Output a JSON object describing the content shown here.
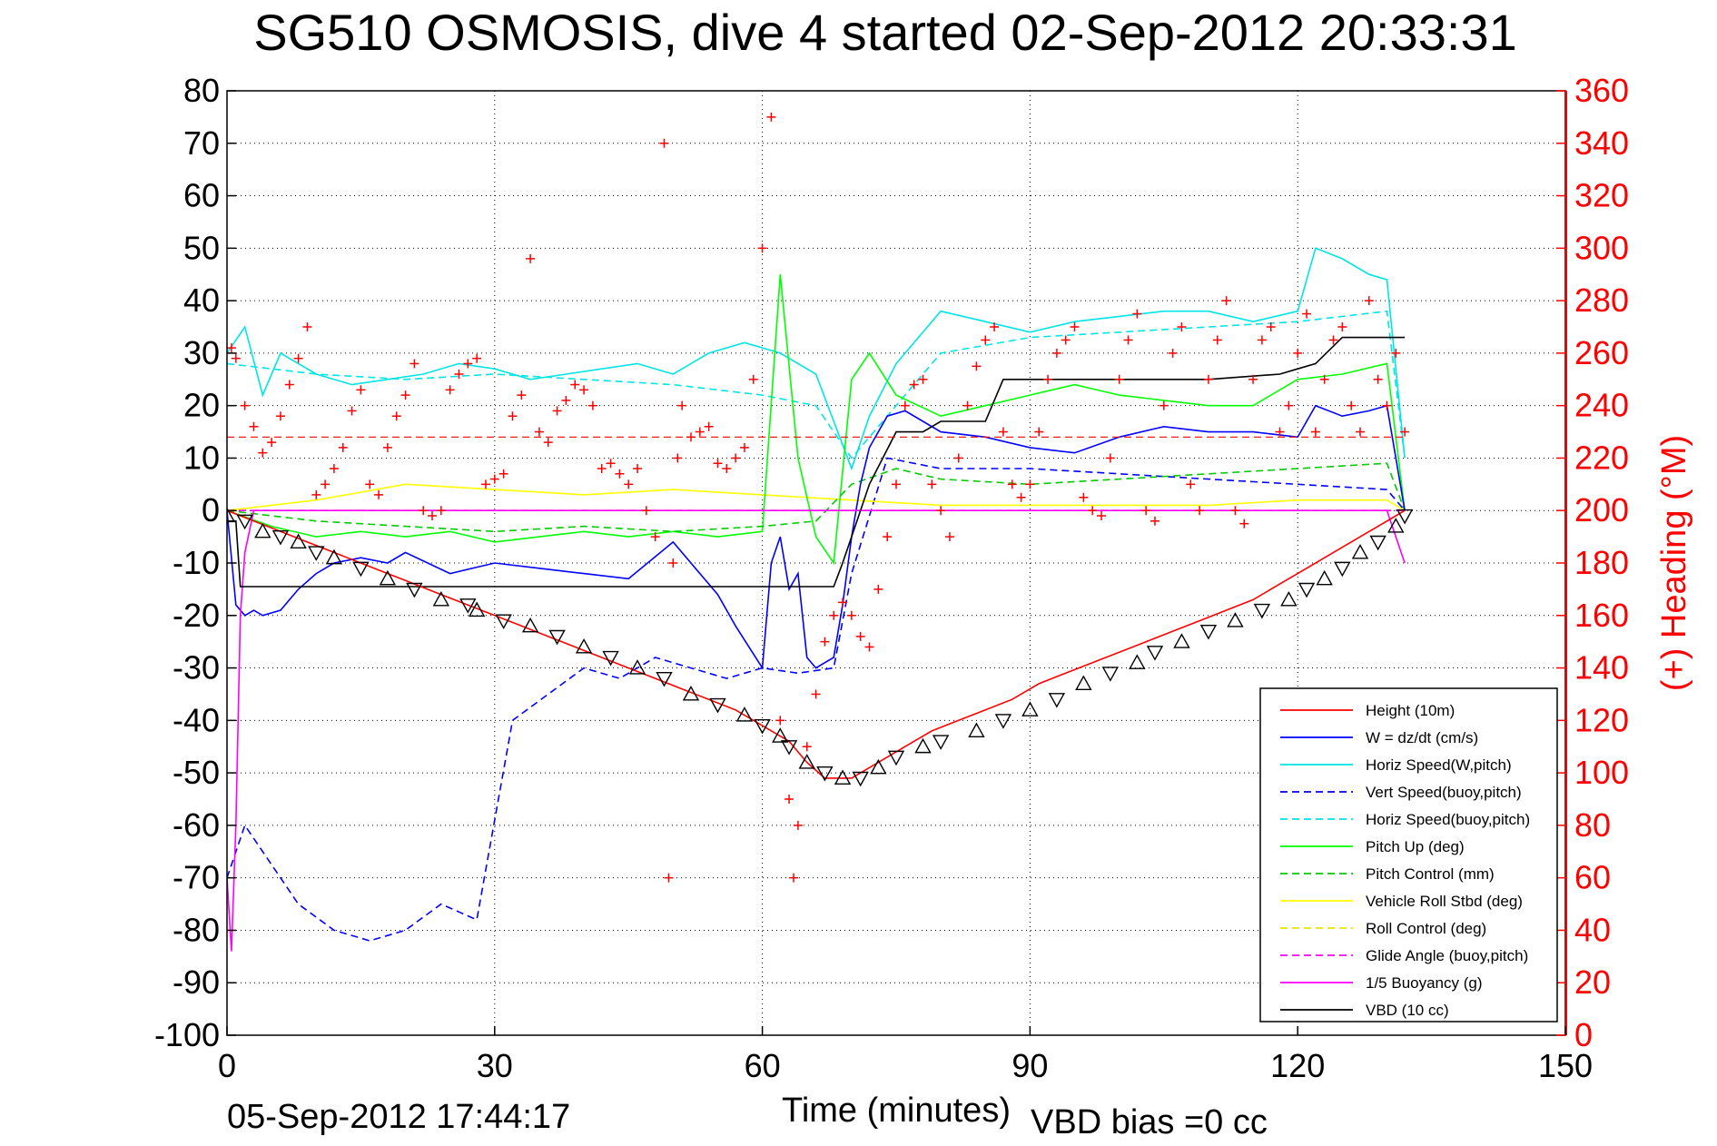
{
  "chart_data": {
    "type": "line",
    "title": "SG510 OSMOSIS, dive 4 started 02-Sep-2012 20:33:31",
    "xlabel": "Time (minutes)",
    "ylabel_right": "(+) Heading (°M)",
    "xlim": [
      0,
      150
    ],
    "ylim": [
      -100,
      80
    ],
    "ylim_right": [
      0,
      360
    ],
    "x_ticks": [
      "0",
      "30",
      "60",
      "90",
      "120",
      "150"
    ],
    "y_ticks": [
      "80",
      "70",
      "60",
      "50",
      "40",
      "30",
      "20",
      "10",
      "0",
      "-10",
      "-20",
      "-30",
      "-40",
      "-50",
      "-60",
      "-70",
      "-80",
      "-90",
      "-100"
    ],
    "y_right_ticks": [
      "360",
      "340",
      "320",
      "300",
      "280",
      "260",
      "240",
      "220",
      "200",
      "180",
      "160",
      "140",
      "120",
      "100",
      "80",
      "60",
      "40",
      "20",
      "0"
    ],
    "grid": true,
    "legend_position": "lower-right",
    "footer_left": "05-Sep-2012 17:44:17",
    "footer_right": "VBD bias =0 cc",
    "colors": {
      "height": "#ff0000",
      "w": "#0000ff",
      "horiz_speed": "#00e5e5",
      "vert_speed_buoy": "#0000ff",
      "horiz_speed_buoy": "#00e5e5",
      "pitch_up": "#00ff00",
      "pitch_control": "#00cc00",
      "roll": "#ffff00",
      "roll_control": "#e5e500",
      "glide_angle": "#ff00ff",
      "buoyancy": "#ff00ff",
      "vbd": "#000000",
      "heading": "#ff0000"
    },
    "series": [
      {
        "name": "Height (10m)",
        "style": "solid",
        "color": "#ff0000",
        "x": [
          0,
          3,
          6,
          9,
          12,
          15,
          18,
          21,
          24,
          27,
          30,
          33,
          36,
          39,
          42,
          45,
          48,
          51,
          54,
          57,
          60,
          63,
          65,
          67,
          70,
          73,
          76,
          79,
          82,
          85,
          88,
          91,
          94,
          97,
          100,
          103,
          106,
          109,
          112,
          115,
          118,
          121,
          124,
          127,
          130,
          132
        ],
        "y": [
          0,
          -2,
          -4,
          -6,
          -8,
          -10,
          -12,
          -14,
          -16,
          -18,
          -20,
          -22,
          -24,
          -26,
          -28,
          -30,
          -32,
          -34,
          -36,
          -38,
          -41,
          -44,
          -48,
          -51,
          -51,
          -48,
          -45,
          -42,
          -40,
          -38,
          -36,
          -33,
          -31,
          -29,
          -27,
          -25,
          -23,
          -21,
          -19,
          -17,
          -14,
          -11,
          -8,
          -5,
          -2,
          0
        ]
      },
      {
        "name": "W = dz/dt (cm/s)",
        "style": "solid",
        "color": "#0000ff",
        "x": [
          0,
          1,
          2,
          3,
          4,
          6,
          8,
          10,
          12,
          15,
          18,
          20,
          25,
          30,
          35,
          40,
          45,
          50,
          55,
          57,
          60,
          61,
          62,
          63,
          64,
          65,
          66,
          68,
          69,
          70,
          71,
          72,
          74,
          76,
          78,
          80,
          85,
          90,
          95,
          100,
          105,
          110,
          115,
          120,
          122,
          125,
          128,
          130,
          132
        ],
        "y": [
          0,
          -18,
          -20,
          -19,
          -20,
          -19,
          -15,
          -12,
          -10,
          -9,
          -10,
          -8,
          -12,
          -10,
          -11,
          -12,
          -13,
          -6,
          -16,
          -22,
          -30,
          -10,
          -5,
          -15,
          -12,
          -28,
          -30,
          -28,
          -18,
          -5,
          5,
          12,
          18,
          19,
          17,
          15,
          14,
          12,
          11,
          14,
          16,
          15,
          15,
          14,
          20,
          18,
          19,
          20,
          0
        ]
      },
      {
        "name": "Horiz Speed(W,pitch)",
        "style": "solid",
        "color": "#00e5e5",
        "x": [
          0,
          2,
          4,
          6,
          8,
          10,
          14,
          18,
          22,
          26,
          30,
          34,
          38,
          42,
          46,
          50,
          54,
          58,
          62,
          66,
          70,
          72,
          75,
          80,
          85,
          90,
          95,
          100,
          105,
          110,
          115,
          120,
          122,
          125,
          128,
          130,
          132
        ],
        "y": [
          30,
          35,
          22,
          30,
          28,
          26,
          24,
          25,
          26,
          28,
          27,
          25,
          26,
          27,
          28,
          26,
          30,
          32,
          30,
          26,
          8,
          18,
          28,
          38,
          36,
          34,
          36,
          37,
          38,
          38,
          36,
          38,
          50,
          48,
          45,
          44,
          10
        ]
      },
      {
        "name": "Vert Speed(buoy,pitch)",
        "style": "dashed",
        "color": "#0000ff",
        "x": [
          0,
          2,
          4,
          6,
          8,
          12,
          16,
          20,
          24,
          28,
          32,
          36,
          40,
          44,
          48,
          52,
          56,
          60,
          64,
          68,
          70,
          74,
          80,
          90,
          100,
          110,
          120,
          130,
          132
        ],
        "y": [
          -70,
          -60,
          -65,
          -70,
          -75,
          -80,
          -82,
          -80,
          -75,
          -78,
          -40,
          -35,
          -30,
          -32,
          -28,
          -30,
          -32,
          -30,
          -31,
          -30,
          -12,
          10,
          8,
          8,
          7,
          6,
          5,
          4,
          0
        ]
      },
      {
        "name": "Horiz Speed(buoy,pitch)",
        "style": "dashed",
        "color": "#00e5e5",
        "x": [
          0,
          10,
          20,
          30,
          40,
          50,
          60,
          66,
          70,
          80,
          90,
          100,
          110,
          120,
          130,
          132
        ],
        "y": [
          28,
          26,
          25,
          26,
          25,
          24,
          22,
          20,
          10,
          30,
          33,
          34,
          35,
          36,
          38,
          10
        ]
      },
      {
        "name": "Pitch Up (deg)",
        "style": "solid",
        "color": "#00ff00",
        "x": [
          0,
          5,
          10,
          15,
          20,
          25,
          30,
          35,
          40,
          45,
          50,
          55,
          60,
          62,
          64,
          66,
          68,
          70,
          72,
          75,
          80,
          85,
          90,
          95,
          100,
          105,
          110,
          115,
          120,
          125,
          130,
          132
        ],
        "y": [
          0,
          -3,
          -5,
          -4,
          -5,
          -4,
          -6,
          -5,
          -4,
          -5,
          -4,
          -5,
          -4,
          45,
          10,
          -5,
          -10,
          25,
          30,
          22,
          18,
          20,
          22,
          24,
          22,
          21,
          20,
          20,
          25,
          26,
          28,
          0
        ]
      },
      {
        "name": "Pitch Control (mm)",
        "style": "dashed",
        "color": "#00cc00",
        "x": [
          0,
          10,
          20,
          30,
          40,
          50,
          60,
          66,
          70,
          75,
          80,
          90,
          100,
          110,
          120,
          130,
          132
        ],
        "y": [
          0,
          -2,
          -3,
          -4,
          -3,
          -4,
          -3,
          -2,
          5,
          8,
          6,
          5,
          6,
          7,
          8,
          9,
          0
        ]
      },
      {
        "name": "Vehicle Roll Stbd (deg)",
        "style": "solid",
        "color": "#ffff00",
        "x": [
          0,
          10,
          20,
          30,
          40,
          50,
          60,
          70,
          80,
          90,
          100,
          110,
          120,
          130,
          132
        ],
        "y": [
          0,
          2,
          5,
          4,
          3,
          4,
          3,
          2,
          1,
          1,
          1,
          1,
          2,
          2,
          0
        ]
      },
      {
        "name": "Roll Control (deg)",
        "style": "dashed",
        "color": "#e5e500",
        "x": [
          0,
          10,
          20,
          30,
          40,
          50,
          60,
          70,
          80,
          90,
          100,
          110,
          120,
          130,
          132
        ],
        "y": [
          0,
          0,
          0,
          0,
          0,
          0,
          0,
          0,
          0,
          0,
          0,
          0,
          0,
          0,
          0
        ]
      },
      {
        "name": "Glide Angle (buoy,pitch)",
        "style": "dashed",
        "color": "#ff00ff",
        "x": [
          0,
          10,
          20,
          30,
          40,
          50,
          60,
          70,
          80,
          90,
          100,
          110,
          120,
          130,
          132
        ],
        "y": [
          0,
          0,
          0,
          0,
          0,
          0,
          0,
          0,
          0,
          0,
          0,
          0,
          0,
          0,
          0
        ]
      },
      {
        "name": "1/5 Buoyancy (g)",
        "style": "solid",
        "color": "#ff00ff",
        "x": [
          0,
          0.5,
          1,
          1.5,
          2,
          3,
          5,
          10,
          20,
          40,
          60,
          70,
          80,
          100,
          120,
          130,
          132
        ],
        "y": [
          -70,
          -84,
          -60,
          -20,
          -8,
          0,
          0,
          0,
          0,
          0,
          0,
          0,
          0,
          0,
          0,
          0,
          -10
        ]
      },
      {
        "name": "VBD (10 cc)",
        "style": "solid",
        "color": "#000000",
        "x": [
          0,
          1,
          1.5,
          68,
          69,
          70,
          72,
          75,
          78,
          80,
          85,
          87,
          90,
          95,
          100,
          110,
          118,
          120,
          122,
          125,
          130,
          132
        ],
        "y": [
          -2,
          -2,
          -14.5,
          -14.5,
          -10,
          -5,
          5,
          15,
          15,
          17,
          17,
          25,
          25,
          25,
          25,
          25,
          26,
          27,
          28,
          33,
          33,
          33
        ]
      }
    ],
    "heading_scatter": {
      "name": "Heading (right axis)",
      "color": "#ff0000",
      "x": [
        0.5,
        1,
        2,
        3,
        4,
        5,
        6,
        7,
        8,
        9,
        10,
        11,
        12,
        13,
        14,
        15,
        16,
        17,
        18,
        19,
        20,
        21,
        22,
        23,
        24,
        25,
        26,
        27,
        28,
        29,
        30,
        31,
        32,
        33,
        34,
        35,
        36,
        37,
        38,
        39,
        40,
        41,
        42,
        43,
        44,
        45,
        46,
        47,
        48,
        49,
        49.5,
        50,
        50.5,
        51,
        52,
        53,
        54,
        55,
        56,
        57,
        58,
        59,
        60,
        61,
        62,
        63,
        63.5,
        64,
        65,
        66,
        67,
        68,
        69,
        70,
        71,
        72,
        73,
        74,
        75,
        76,
        77,
        78,
        79,
        80,
        81,
        82,
        83,
        84,
        85,
        86,
        87,
        88,
        89,
        90,
        91,
        92,
        93,
        94,
        95,
        96,
        97,
        98,
        99,
        100,
        101,
        102,
        103,
        104,
        105,
        106,
        107,
        108,
        109,
        110,
        111,
        112,
        113,
        114,
        115,
        116,
        117,
        118,
        119,
        120,
        121,
        122,
        123,
        124,
        125,
        126,
        127,
        128,
        129,
        130,
        131,
        132
      ],
      "y": [
        262,
        258,
        240,
        232,
        222,
        226,
        236,
        248,
        258,
        270,
        206,
        210,
        216,
        224,
        238,
        246,
        210,
        206,
        224,
        236,
        244,
        256,
        200,
        198,
        200,
        246,
        252,
        256,
        258,
        210,
        212,
        214,
        236,
        244,
        296,
        230,
        226,
        238,
        242,
        248,
        246,
        240,
        216,
        218,
        214,
        210,
        216,
        200,
        190,
        340,
        60,
        180,
        220,
        240,
        228,
        230,
        232,
        218,
        216,
        220,
        224,
        250,
        300,
        350,
        120,
        90,
        60,
        80,
        110,
        130,
        150,
        160,
        165,
        160,
        152,
        148,
        170,
        190,
        210,
        240,
        248,
        250,
        210,
        200,
        190,
        220,
        240,
        255,
        265,
        270,
        230,
        210,
        205,
        210,
        230,
        250,
        260,
        265,
        270,
        205,
        200,
        198,
        220,
        250,
        265,
        275,
        200,
        196,
        240,
        260,
        270,
        210,
        200,
        250,
        265,
        280,
        200,
        195,
        250,
        265,
        270,
        230,
        240,
        260,
        275,
        230,
        250,
        265,
        270,
        240,
        230,
        280,
        250,
        240,
        260,
        230
      ],
      "reference_line": 228
    },
    "profile_markers": {
      "name": "Profile marker triangles",
      "x": [
        0,
        2,
        4,
        6,
        8,
        10,
        12,
        15,
        18,
        21,
        24,
        27,
        28,
        31,
        34,
        37,
        40,
        43,
        46,
        49,
        52,
        55,
        58,
        60,
        62,
        63,
        65,
        67,
        69,
        71,
        73,
        75,
        78,
        80,
        84,
        87,
        90,
        93,
        96,
        99,
        102,
        104,
        107,
        110,
        113,
        116,
        119,
        121,
        123,
        125,
        127,
        129,
        131,
        132
      ],
      "y": [
        -1,
        -2,
        -4,
        -5,
        -6,
        -8,
        -9,
        -11,
        -13,
        -15,
        -17,
        -18,
        -19,
        -21,
        -22,
        -24,
        -26,
        -28,
        -30,
        -32,
        -35,
        -37,
        -39,
        -41,
        -43,
        -45,
        -48,
        -50,
        -51,
        -51,
        -49,
        -47,
        -45,
        -44,
        -42,
        -40,
        -38,
        -36,
        -33,
        -31,
        -29,
        -27,
        -25,
        -23,
        -21,
        -19,
        -17,
        -15,
        -13,
        -11,
        -8,
        -6,
        -3,
        -1
      ]
    }
  }
}
